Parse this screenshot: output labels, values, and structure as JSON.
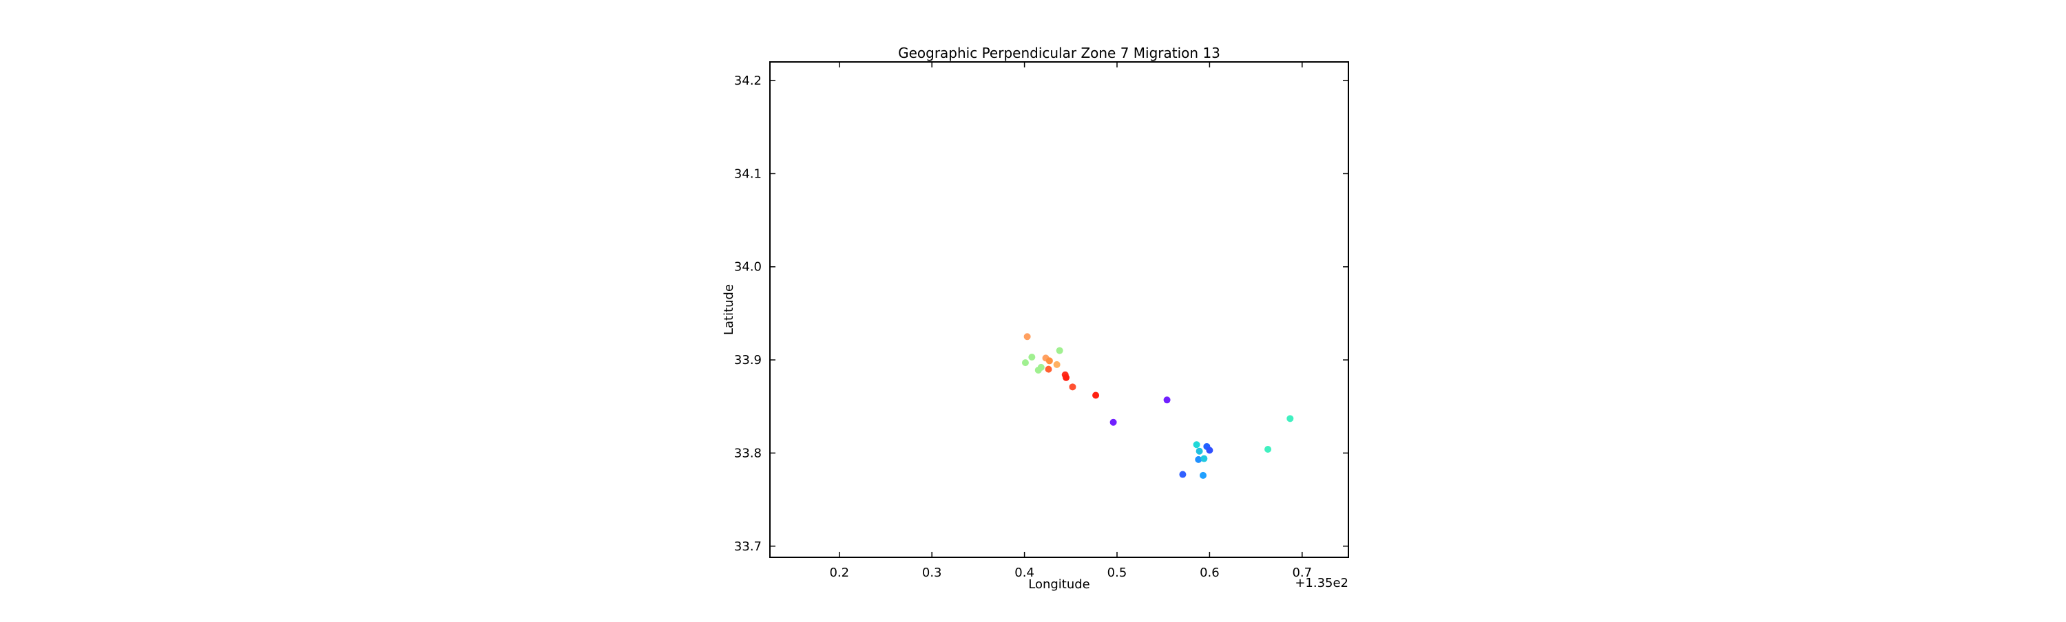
{
  "chart_data": {
    "type": "scatter",
    "title": "Geographic Perpendicular Zone 7 Migration 13",
    "xlabel": "Longitude",
    "ylabel": "Latitude",
    "x_offset_label": "+1.35e2",
    "x_offset": 135,
    "xlim": [
      135.125,
      135.75
    ],
    "ylim": [
      33.688,
      34.22
    ],
    "xticks": [
      135.2,
      135.3,
      135.4,
      135.5,
      135.6,
      135.7
    ],
    "xtick_labels": [
      "0.2",
      "0.3",
      "0.4",
      "0.5",
      "0.6",
      "0.7"
    ],
    "yticks": [
      33.7,
      33.8,
      33.9,
      34.0,
      34.1,
      34.2
    ],
    "ytick_labels": [
      "33.7",
      "33.8",
      "33.9",
      "34.0",
      "34.1",
      "34.2"
    ],
    "grid": false,
    "legend": "none",
    "points": [
      {
        "x": 135.403,
        "y": 33.925,
        "color": "#ffa060"
      },
      {
        "x": 135.408,
        "y": 33.903,
        "color": "#a0f090"
      },
      {
        "x": 135.401,
        "y": 33.897,
        "color": "#a0f090"
      },
      {
        "x": 135.415,
        "y": 33.889,
        "color": "#a0f090"
      },
      {
        "x": 135.418,
        "y": 33.892,
        "color": "#a0f090"
      },
      {
        "x": 135.423,
        "y": 33.902,
        "color": "#ffa060"
      },
      {
        "x": 135.427,
        "y": 33.899,
        "color": "#ff9040"
      },
      {
        "x": 135.426,
        "y": 33.89,
        "color": "#ff6030"
      },
      {
        "x": 135.435,
        "y": 33.895,
        "color": "#ffb060"
      },
      {
        "x": 135.438,
        "y": 33.91,
        "color": "#a0f090"
      },
      {
        "x": 135.444,
        "y": 33.884,
        "color": "#ff3020"
      },
      {
        "x": 135.445,
        "y": 33.881,
        "color": "#ff2010"
      },
      {
        "x": 135.452,
        "y": 33.871,
        "color": "#ff5030"
      },
      {
        "x": 135.477,
        "y": 33.862,
        "color": "#ff2010"
      },
      {
        "x": 135.496,
        "y": 33.833,
        "color": "#7020ff"
      },
      {
        "x": 135.554,
        "y": 33.857,
        "color": "#7020ff"
      },
      {
        "x": 135.586,
        "y": 33.809,
        "color": "#20d8d8"
      },
      {
        "x": 135.589,
        "y": 33.802,
        "color": "#20c0e0"
      },
      {
        "x": 135.597,
        "y": 33.807,
        "color": "#2060ff"
      },
      {
        "x": 135.6,
        "y": 33.803,
        "color": "#3050ff"
      },
      {
        "x": 135.588,
        "y": 33.793,
        "color": "#2090ff"
      },
      {
        "x": 135.594,
        "y": 33.794,
        "color": "#20c8e0"
      },
      {
        "x": 135.571,
        "y": 33.777,
        "color": "#3060ff"
      },
      {
        "x": 135.593,
        "y": 33.776,
        "color": "#20a0ff"
      },
      {
        "x": 135.663,
        "y": 33.804,
        "color": "#40f0c0"
      },
      {
        "x": 135.687,
        "y": 33.837,
        "color": "#40f0c0"
      }
    ]
  }
}
